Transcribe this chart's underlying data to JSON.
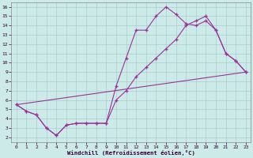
{
  "xlabel": "Windchill (Refroidissement éolien,°C)",
  "bg_color": "#cceae8",
  "grid_color": "#aacccc",
  "line_color": "#993399",
  "xlim": [
    -0.5,
    23.5
  ],
  "ylim": [
    1.5,
    16.5
  ],
  "xticks": [
    0,
    1,
    2,
    3,
    4,
    5,
    6,
    7,
    8,
    9,
    10,
    11,
    12,
    13,
    14,
    15,
    16,
    17,
    18,
    19,
    20,
    21,
    22,
    23
  ],
  "yticks": [
    2,
    3,
    4,
    5,
    6,
    7,
    8,
    9,
    10,
    11,
    12,
    13,
    14,
    15,
    16
  ],
  "line1_x": [
    0,
    1,
    2,
    3,
    4,
    5,
    6,
    7,
    8,
    9,
    10,
    11,
    12,
    13,
    14,
    15,
    16,
    17,
    18,
    19,
    20,
    21,
    22,
    23
  ],
  "line1_y": [
    5.5,
    4.8,
    4.4,
    3.0,
    2.2,
    3.3,
    3.5,
    3.5,
    3.5,
    3.5,
    7.5,
    10.5,
    13.5,
    13.5,
    15.0,
    16.0,
    15.2,
    14.2,
    14.0,
    14.5,
    13.5,
    11.0,
    10.2,
    9.0
  ],
  "line2_x": [
    0,
    1,
    2,
    3,
    4,
    5,
    6,
    7,
    8,
    9,
    10,
    11,
    12,
    13,
    14,
    15,
    16,
    17,
    18,
    19,
    20,
    21,
    22,
    23
  ],
  "line2_y": [
    5.5,
    4.8,
    4.4,
    3.0,
    2.2,
    3.3,
    3.5,
    3.5,
    3.5,
    3.5,
    6.0,
    7.0,
    8.5,
    9.5,
    10.5,
    11.5,
    12.5,
    14.0,
    14.5,
    15.0,
    13.5,
    11.0,
    10.2,
    9.0
  ],
  "line3_x": [
    0,
    23
  ],
  "line3_y": [
    5.5,
    9.0
  ]
}
